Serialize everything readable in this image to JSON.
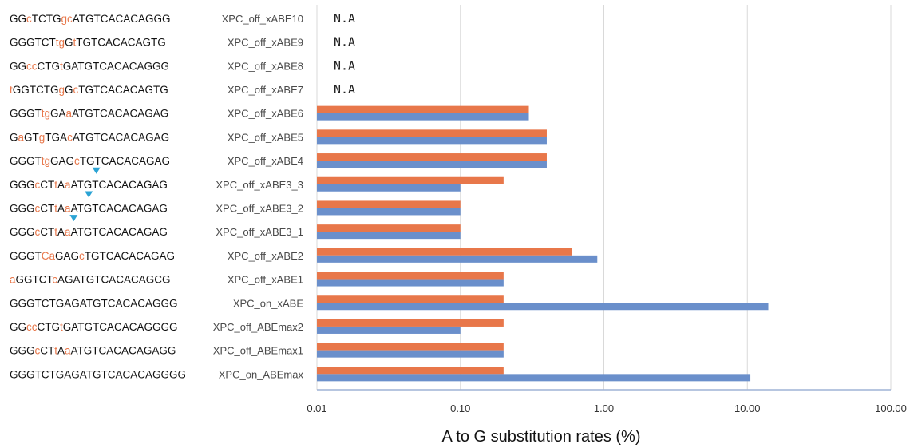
{
  "chart_data": {
    "type": "bar",
    "orientation": "horizontal",
    "x_scale": "log",
    "xlim": [
      0.01,
      100
    ],
    "grid": true,
    "xlabel": "A to G substitution rates (%)",
    "x_ticks": [
      "0.01",
      "0.10",
      "1.00",
      "10.00",
      "100.00"
    ],
    "x_tick_values": [
      0.01,
      0.1,
      1,
      10,
      100
    ],
    "colors": {
      "orange": "#e8774a",
      "blue": "#6a8fcb",
      "mutation": "#e8774a",
      "marker": "#2aa3d4"
    },
    "rows": [
      {
        "category": "XPC_off_xABE10",
        "sequence": [
          [
            "GG",
            0
          ],
          [
            "c",
            1
          ],
          [
            "TCTG",
            0
          ],
          [
            "gc",
            1
          ],
          [
            "ATGTCACACAGGG",
            0
          ]
        ],
        "na": "N.A",
        "values": [
          null,
          null
        ]
      },
      {
        "category": "XPC_off_xABE9",
        "sequence": [
          [
            "GGGTCT",
            0
          ],
          [
            "tg",
            1
          ],
          [
            "G",
            0
          ],
          [
            "t",
            1
          ],
          [
            "TGTCACACAGTG",
            0
          ]
        ],
        "na": "N.A",
        "values": [
          null,
          null
        ]
      },
      {
        "category": "XPC_off_xABE8",
        "sequence": [
          [
            "GG",
            0
          ],
          [
            "cc",
            1
          ],
          [
            "CTG",
            0
          ],
          [
            "t",
            1
          ],
          [
            "GATGTCACACAGGG",
            0
          ]
        ],
        "na": "N.A",
        "values": [
          null,
          null
        ]
      },
      {
        "category": "XPC_off_xABE7",
        "sequence": [
          [
            "t",
            1
          ],
          [
            "GGTCTG",
            0
          ],
          [
            "g",
            1
          ],
          [
            "G",
            0
          ],
          [
            "c",
            1
          ],
          [
            "TGTCACACAGTG",
            0
          ]
        ],
        "na": "N.A",
        "values": [
          null,
          null
        ]
      },
      {
        "category": "XPC_off_xABE6",
        "sequence": [
          [
            "GGGT",
            0
          ],
          [
            "tg",
            1
          ],
          [
            "GA",
            0
          ],
          [
            "a",
            1
          ],
          [
            "ATGTCACACAGAG",
            0
          ]
        ],
        "values": [
          0.3,
          0.3
        ]
      },
      {
        "category": "XPC_off_xABE5",
        "sequence": [
          [
            "G",
            0
          ],
          [
            "a",
            1
          ],
          [
            "GT",
            0
          ],
          [
            "g",
            1
          ],
          [
            "TGA",
            0
          ],
          [
            "c",
            1
          ],
          [
            "ATGTCACACAGAG",
            0
          ]
        ],
        "values": [
          0.4,
          0.4
        ]
      },
      {
        "category": "XPC_off_xABE4",
        "sequence": [
          [
            "GGGT",
            0
          ],
          [
            "tg",
            1
          ],
          [
            "GAG",
            0
          ],
          [
            "c",
            1
          ],
          [
            "TGTCACACAGAG",
            0
          ]
        ],
        "values": [
          0.4,
          0.4
        ]
      },
      {
        "category": "XPC_off_xABE3_3",
        "sequence": [
          [
            "GGG",
            0
          ],
          [
            "c",
            1
          ],
          [
            "CT",
            0
          ],
          [
            "t",
            1
          ],
          [
            "A",
            0
          ],
          [
            "a",
            1
          ],
          [
            "ATGTCACACAGAG",
            0
          ]
        ],
        "marker_index": 11,
        "values": [
          0.2,
          0.1
        ]
      },
      {
        "category": "XPC_off_xABE3_2",
        "sequence": [
          [
            "GGG",
            0
          ],
          [
            "c",
            1
          ],
          [
            "CT",
            0
          ],
          [
            "t",
            1
          ],
          [
            "A",
            0
          ],
          [
            "a",
            1
          ],
          [
            "ATGTCACACAGAG",
            0
          ]
        ],
        "marker_index": 10,
        "values": [
          0.1,
          0.1
        ]
      },
      {
        "category": "XPC_off_xABE3_1",
        "sequence": [
          [
            "GGG",
            0
          ],
          [
            "c",
            1
          ],
          [
            "CT",
            0
          ],
          [
            "t",
            1
          ],
          [
            "A",
            0
          ],
          [
            "a",
            1
          ],
          [
            "ATGTCACACAGAG",
            0
          ]
        ],
        "marker_index": 8,
        "values": [
          0.1,
          0.1
        ]
      },
      {
        "category": "XPC_off_xABE2",
        "sequence": [
          [
            "GGGT",
            0
          ],
          [
            "Ca",
            1
          ],
          [
            "GAG",
            0
          ],
          [
            "c",
            1
          ],
          [
            "TGTCACACAGAG",
            0
          ]
        ],
        "values": [
          0.6,
          0.9
        ]
      },
      {
        "category": "XPC_off_xABE1",
        "sequence": [
          [
            "a",
            1
          ],
          [
            "GGTCT",
            0
          ],
          [
            "c",
            1
          ],
          [
            "AGATGTCACACAGCG",
            0
          ]
        ],
        "values": [
          0.2,
          0.2
        ]
      },
      {
        "category": "XPC_on_xABE",
        "sequence": [
          [
            "GGGTCTGAGATGTCACACAGGG",
            0
          ]
        ],
        "values": [
          0.2,
          14.0
        ]
      },
      {
        "category": "XPC_off_ABEmax2",
        "sequence": [
          [
            "GG",
            0
          ],
          [
            "cc",
            1
          ],
          [
            "CTG",
            0
          ],
          [
            "t",
            1
          ],
          [
            "GATGTCACACAGGGG",
            0
          ]
        ],
        "values": [
          0.2,
          0.1
        ]
      },
      {
        "category": "XPC_off_ABEmax1",
        "sequence": [
          [
            "GGG",
            0
          ],
          [
            "c",
            1
          ],
          [
            "CT",
            0
          ],
          [
            "t",
            1
          ],
          [
            "A",
            0
          ],
          [
            "a",
            1
          ],
          [
            "ATGTCACACAGAGG",
            0
          ]
        ],
        "values": [
          0.2,
          0.2
        ]
      },
      {
        "category": "XPC_on_ABEmax",
        "sequence": [
          [
            "GGGTCTGAGATGTCACACAGGGG",
            0
          ]
        ],
        "values": [
          0.2,
          10.5
        ]
      }
    ]
  }
}
